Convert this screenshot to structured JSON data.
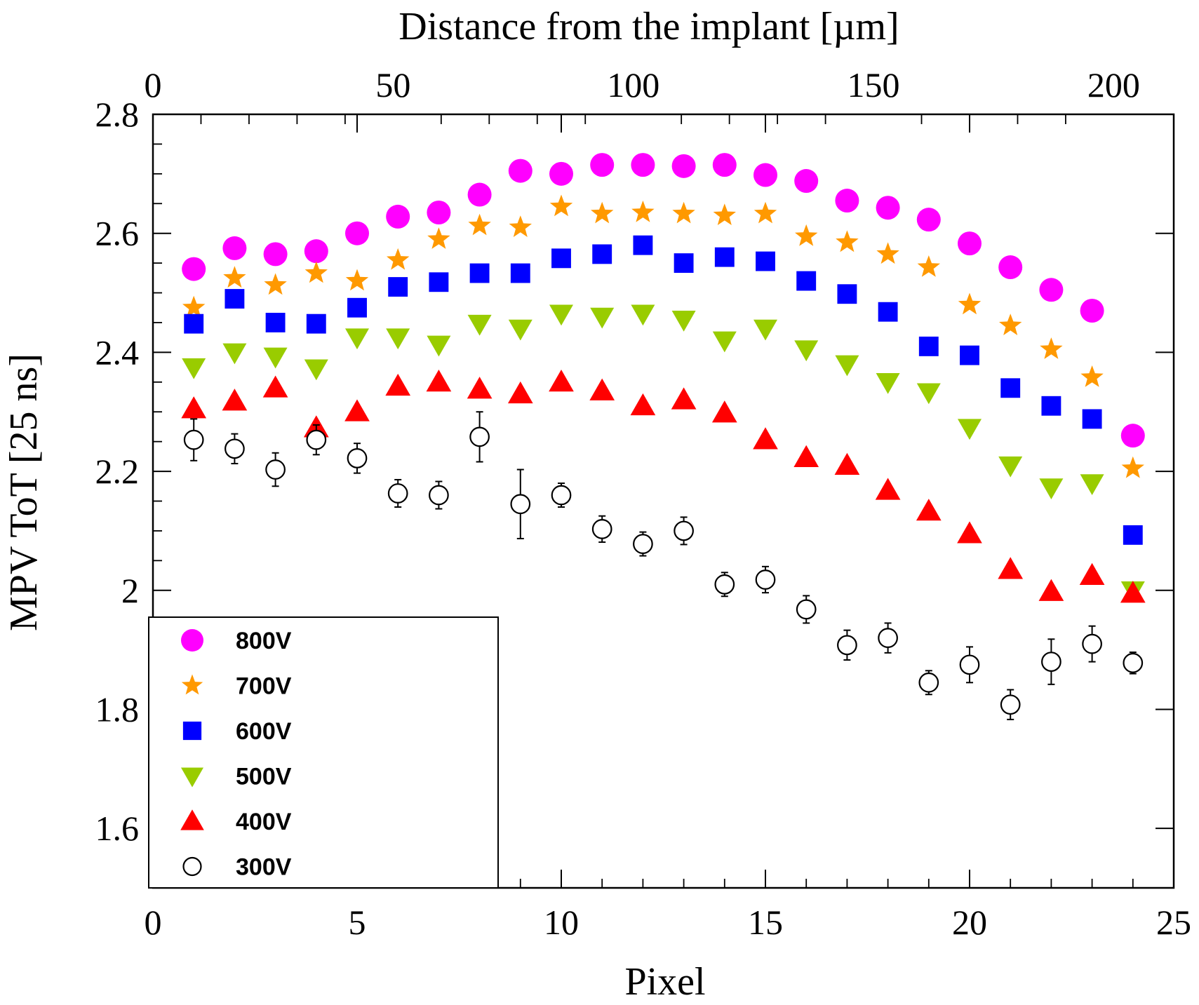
{
  "chart_data": {
    "type": "scatter",
    "xlabel": "Pixel",
    "ylabel": "MPV ToT [25 ns]",
    "top_axis_label": "Distance from the implant [µm]",
    "xlim": [
      0,
      25
    ],
    "ylim": [
      1.5,
      2.8
    ],
    "top_axis_lim": [
      0,
      212.5
    ],
    "x_ticks": [
      "0",
      "5",
      "10",
      "15",
      "20",
      "25"
    ],
    "y_ticks": [
      "1.6",
      "1.8",
      "2",
      "2.2",
      "2.4",
      "2.6",
      "2.8"
    ],
    "top_ticks": [
      "0",
      "50",
      "100",
      "150",
      "200"
    ],
    "legend_position": "bottom-left",
    "x": [
      1,
      2,
      3,
      4,
      5,
      6,
      7,
      8,
      9,
      10,
      11,
      12,
      13,
      14,
      15,
      16,
      17,
      18,
      19,
      20,
      21,
      22,
      23,
      24
    ],
    "series": [
      {
        "name": "800V",
        "marker": "circle-filled",
        "color": "#ff00ff",
        "values": [
          2.54,
          2.575,
          2.565,
          2.57,
          2.6,
          2.628,
          2.635,
          2.665,
          2.705,
          2.7,
          2.715,
          2.715,
          2.713,
          2.715,
          2.698,
          2.688,
          2.655,
          2.643,
          2.623,
          2.583,
          2.543,
          2.505,
          2.47,
          2.26
        ]
      },
      {
        "name": "700V",
        "marker": "star",
        "color": "#ff9900",
        "values": [
          2.475,
          2.525,
          2.513,
          2.533,
          2.52,
          2.555,
          2.59,
          2.613,
          2.61,
          2.645,
          2.633,
          2.635,
          2.633,
          2.63,
          2.633,
          2.595,
          2.585,
          2.565,
          2.543,
          2.48,
          2.445,
          2.405,
          2.358,
          2.205
        ]
      },
      {
        "name": "600V",
        "marker": "square",
        "color": "#0000ff",
        "values": [
          2.448,
          2.49,
          2.45,
          2.448,
          2.475,
          2.51,
          2.518,
          2.533,
          2.533,
          2.558,
          2.565,
          2.58,
          2.55,
          2.56,
          2.553,
          2.52,
          2.498,
          2.468,
          2.41,
          2.395,
          2.34,
          2.31,
          2.288,
          2.093
        ]
      },
      {
        "name": "500V",
        "marker": "triangle-down",
        "color": "#99cc00",
        "values": [
          2.375,
          2.4,
          2.393,
          2.373,
          2.425,
          2.425,
          2.413,
          2.448,
          2.44,
          2.465,
          2.46,
          2.465,
          2.455,
          2.42,
          2.44,
          2.405,
          2.38,
          2.35,
          2.333,
          2.273,
          2.21,
          2.173,
          2.18,
          2.0
        ]
      },
      {
        "name": "400V",
        "marker": "triangle-up",
        "color": "#ff0000",
        "values": [
          2.305,
          2.318,
          2.34,
          2.273,
          2.3,
          2.343,
          2.35,
          2.338,
          2.33,
          2.35,
          2.335,
          2.31,
          2.32,
          2.298,
          2.253,
          2.223,
          2.21,
          2.168,
          2.133,
          2.095,
          2.035,
          1.998,
          2.025,
          1.995
        ]
      },
      {
        "name": "300V",
        "marker": "circle-open",
        "color": "#000000",
        "values": [
          2.253,
          2.238,
          2.203,
          2.253,
          2.222,
          2.163,
          2.16,
          2.258,
          2.145,
          2.16,
          2.103,
          2.078,
          2.1,
          2.01,
          2.018,
          1.968,
          1.908,
          1.92,
          1.845,
          1.875,
          1.808,
          1.88,
          1.91,
          1.878
        ],
        "errors": [
          0.035,
          0.025,
          0.028,
          0.025,
          0.025,
          0.023,
          0.023,
          0.042,
          0.058,
          0.02,
          0.022,
          0.02,
          0.023,
          0.02,
          0.022,
          0.023,
          0.025,
          0.025,
          0.02,
          0.03,
          0.025,
          0.038,
          0.03,
          0.018
        ]
      }
    ]
  }
}
